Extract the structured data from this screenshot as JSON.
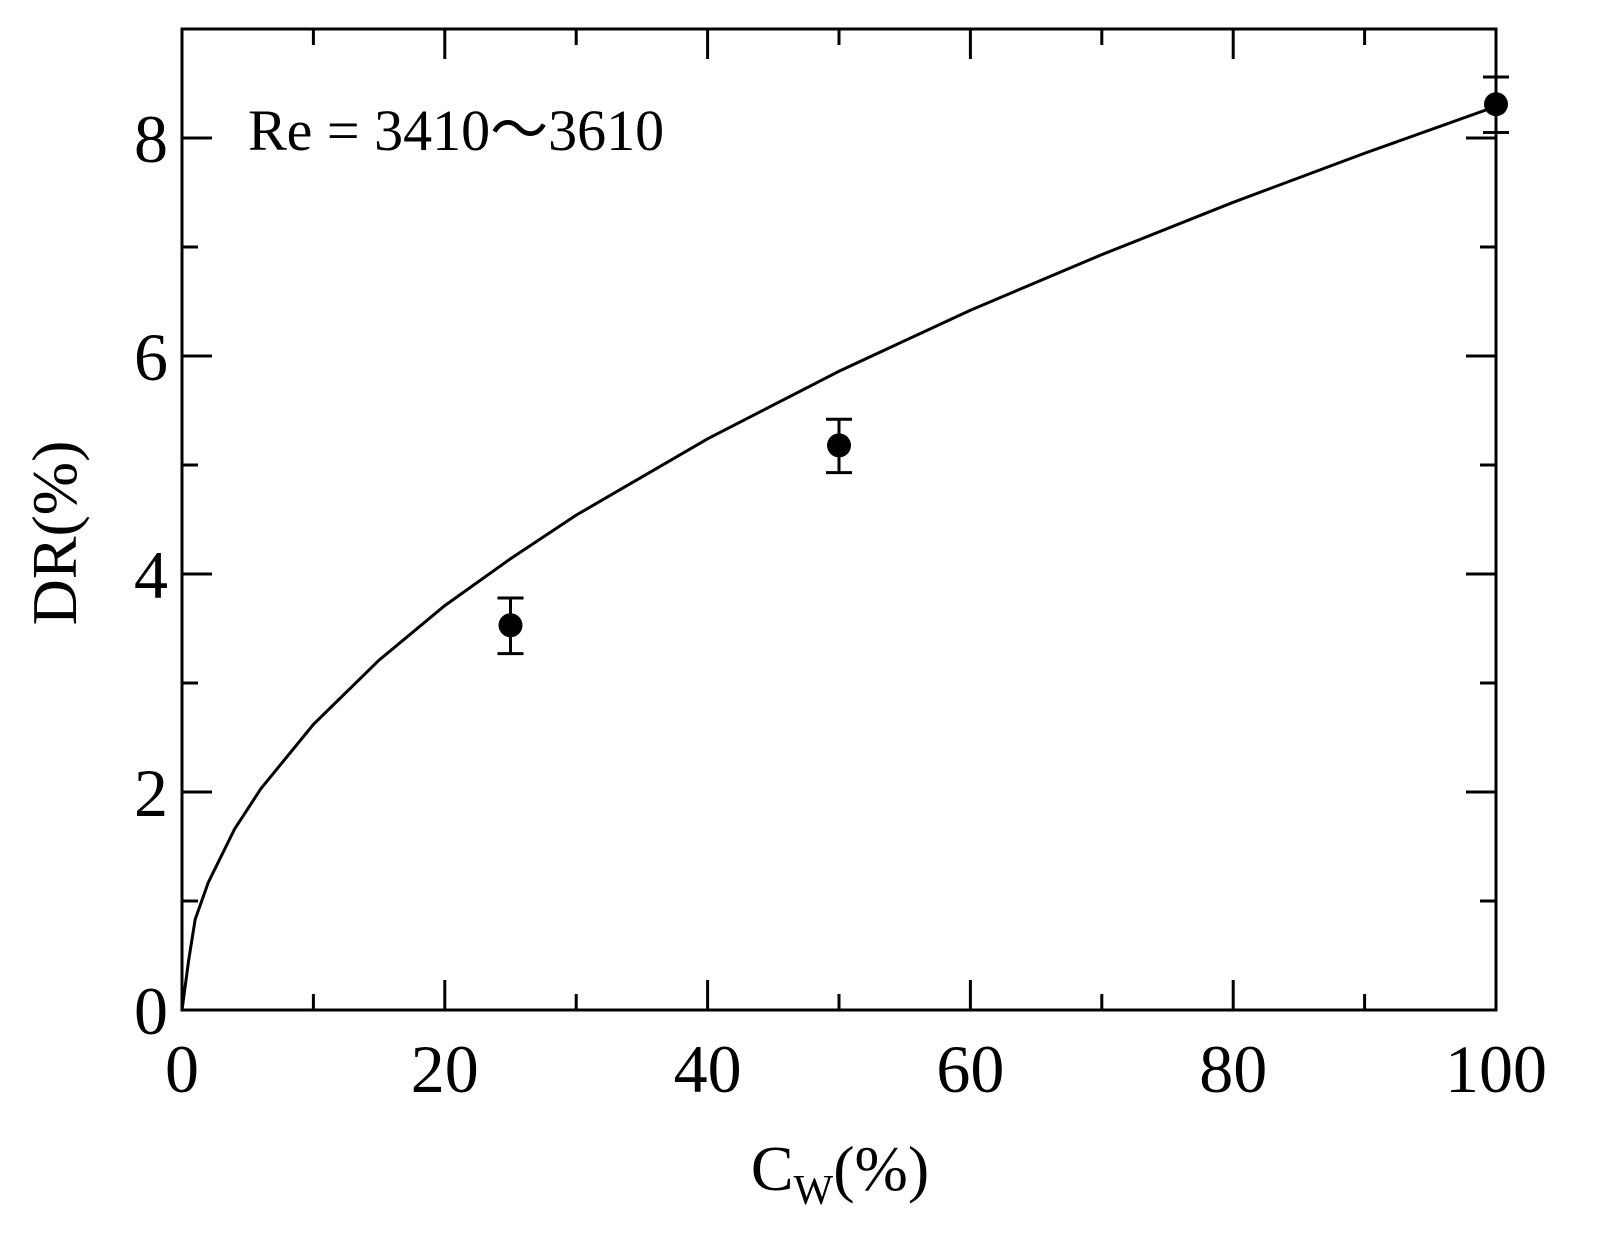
{
  "chart_data": {
    "type": "scatter",
    "title": "",
    "xlabel": "C",
    "xlabel_subscript": "W",
    "xlabel_suffix": "(%)",
    "ylabel": "DR(%)",
    "xlim": [
      0,
      100
    ],
    "ylim": [
      0,
      9
    ],
    "x_major_ticks": [
      0,
      20,
      40,
      60,
      80,
      100
    ],
    "x_minor_ticks": [
      10,
      30,
      50,
      70,
      90
    ],
    "y_major_ticks": [
      0,
      2,
      4,
      6,
      8
    ],
    "y_minor_ticks": [
      1,
      3,
      5,
      7
    ],
    "x_tick_labels": [
      "0",
      "20",
      "40",
      "60",
      "80",
      "100"
    ],
    "y_tick_labels": [
      "0",
      "2",
      "4",
      "6",
      "8"
    ],
    "grid": false,
    "annotation": "Re = 3410～3610",
    "annotation_position": "top-left",
    "series": [
      {
        "kind": "markers-with-errorbars",
        "marker": "filled-circle",
        "color": "#000000",
        "points": [
          {
            "x": 25,
            "y": 3.53,
            "err_low": 3.27,
            "err_high": 3.78
          },
          {
            "x": 50,
            "y": 5.18,
            "err_low": 4.93,
            "err_high": 5.42
          },
          {
            "x": 100,
            "y": 8.31,
            "err_low": 8.05,
            "err_high": 8.56
          }
        ]
      },
      {
        "kind": "line",
        "color": "#000000",
        "points": [
          {
            "x": 0,
            "y": 0
          },
          {
            "x": 0.5,
            "y": 0.45
          },
          {
            "x": 1,
            "y": 0.83
          },
          {
            "x": 2,
            "y": 1.17
          },
          {
            "x": 4,
            "y": 1.66
          },
          {
            "x": 6,
            "y": 2.03
          },
          {
            "x": 10,
            "y": 2.62
          },
          {
            "x": 15,
            "y": 3.21
          },
          {
            "x": 20,
            "y": 3.71
          },
          {
            "x": 25,
            "y": 4.14
          },
          {
            "x": 30,
            "y": 4.54
          },
          {
            "x": 40,
            "y": 5.24
          },
          {
            "x": 50,
            "y": 5.86
          },
          {
            "x": 60,
            "y": 6.42
          },
          {
            "x": 70,
            "y": 6.93
          },
          {
            "x": 80,
            "y": 7.41
          },
          {
            "x": 90,
            "y": 7.86
          },
          {
            "x": 100,
            "y": 8.29
          }
        ]
      }
    ]
  }
}
